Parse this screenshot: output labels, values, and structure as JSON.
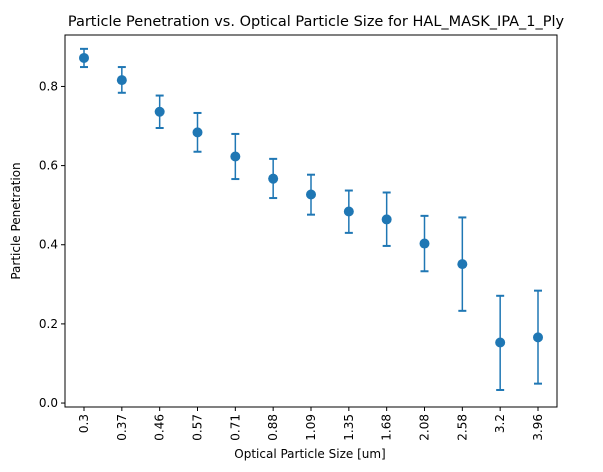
{
  "chart_data": {
    "type": "scatter",
    "title": "Particle Penetration vs. Optical Particle Size for HAL_MASK_IPA_1_Ply",
    "xlabel": "Optical Particle Size [um]",
    "ylabel": "Particle Penetration",
    "categories": [
      "0.3",
      "0.37",
      "0.46",
      "0.57",
      "0.71",
      "0.88",
      "1.09",
      "1.35",
      "1.68",
      "2.08",
      "2.58",
      "3.2",
      "3.96"
    ],
    "series": [
      {
        "values": [
          0.872,
          0.816,
          0.736,
          0.684,
          0.623,
          0.567,
          0.527,
          0.484,
          0.464,
          0.403,
          0.351,
          0.153,
          0.166
        ],
        "err_low": [
          0.849,
          0.784,
          0.695,
          0.635,
          0.566,
          0.518,
          0.476,
          0.43,
          0.397,
          0.333,
          0.233,
          0.033,
          0.049
        ],
        "err_high": [
          0.895,
          0.849,
          0.777,
          0.733,
          0.68,
          0.617,
          0.577,
          0.537,
          0.532,
          0.473,
          0.469,
          0.271,
          0.284
        ],
        "color": "#1f77b4"
      }
    ],
    "ylim": [
      -0.01,
      0.93
    ],
    "yticks": [
      0.0,
      0.2,
      0.4,
      0.6,
      0.8
    ],
    "ytick_labels": [
      "0.0",
      "0.2",
      "0.4",
      "0.6",
      "0.8"
    ],
    "grid": false,
    "legend": false
  }
}
